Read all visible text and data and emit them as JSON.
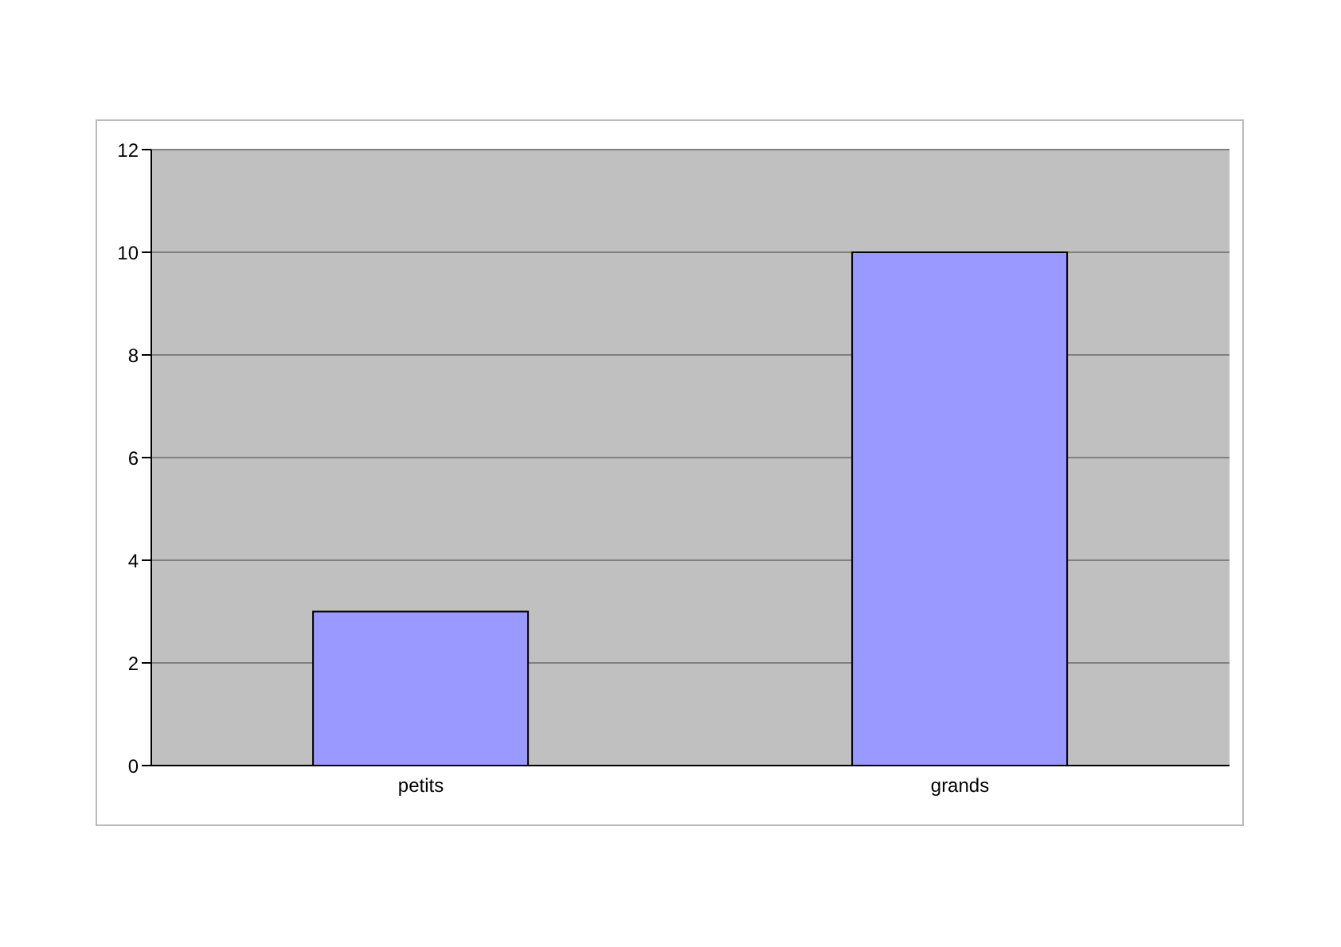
{
  "chart_data": {
    "type": "bar",
    "categories": [
      "petits",
      "grands"
    ],
    "values": [
      3,
      10
    ],
    "color": "#9999ff",
    "ylim": [
      0,
      12
    ],
    "yticks": [
      0,
      2,
      4,
      6,
      8,
      10,
      12
    ],
    "grid": "y"
  }
}
